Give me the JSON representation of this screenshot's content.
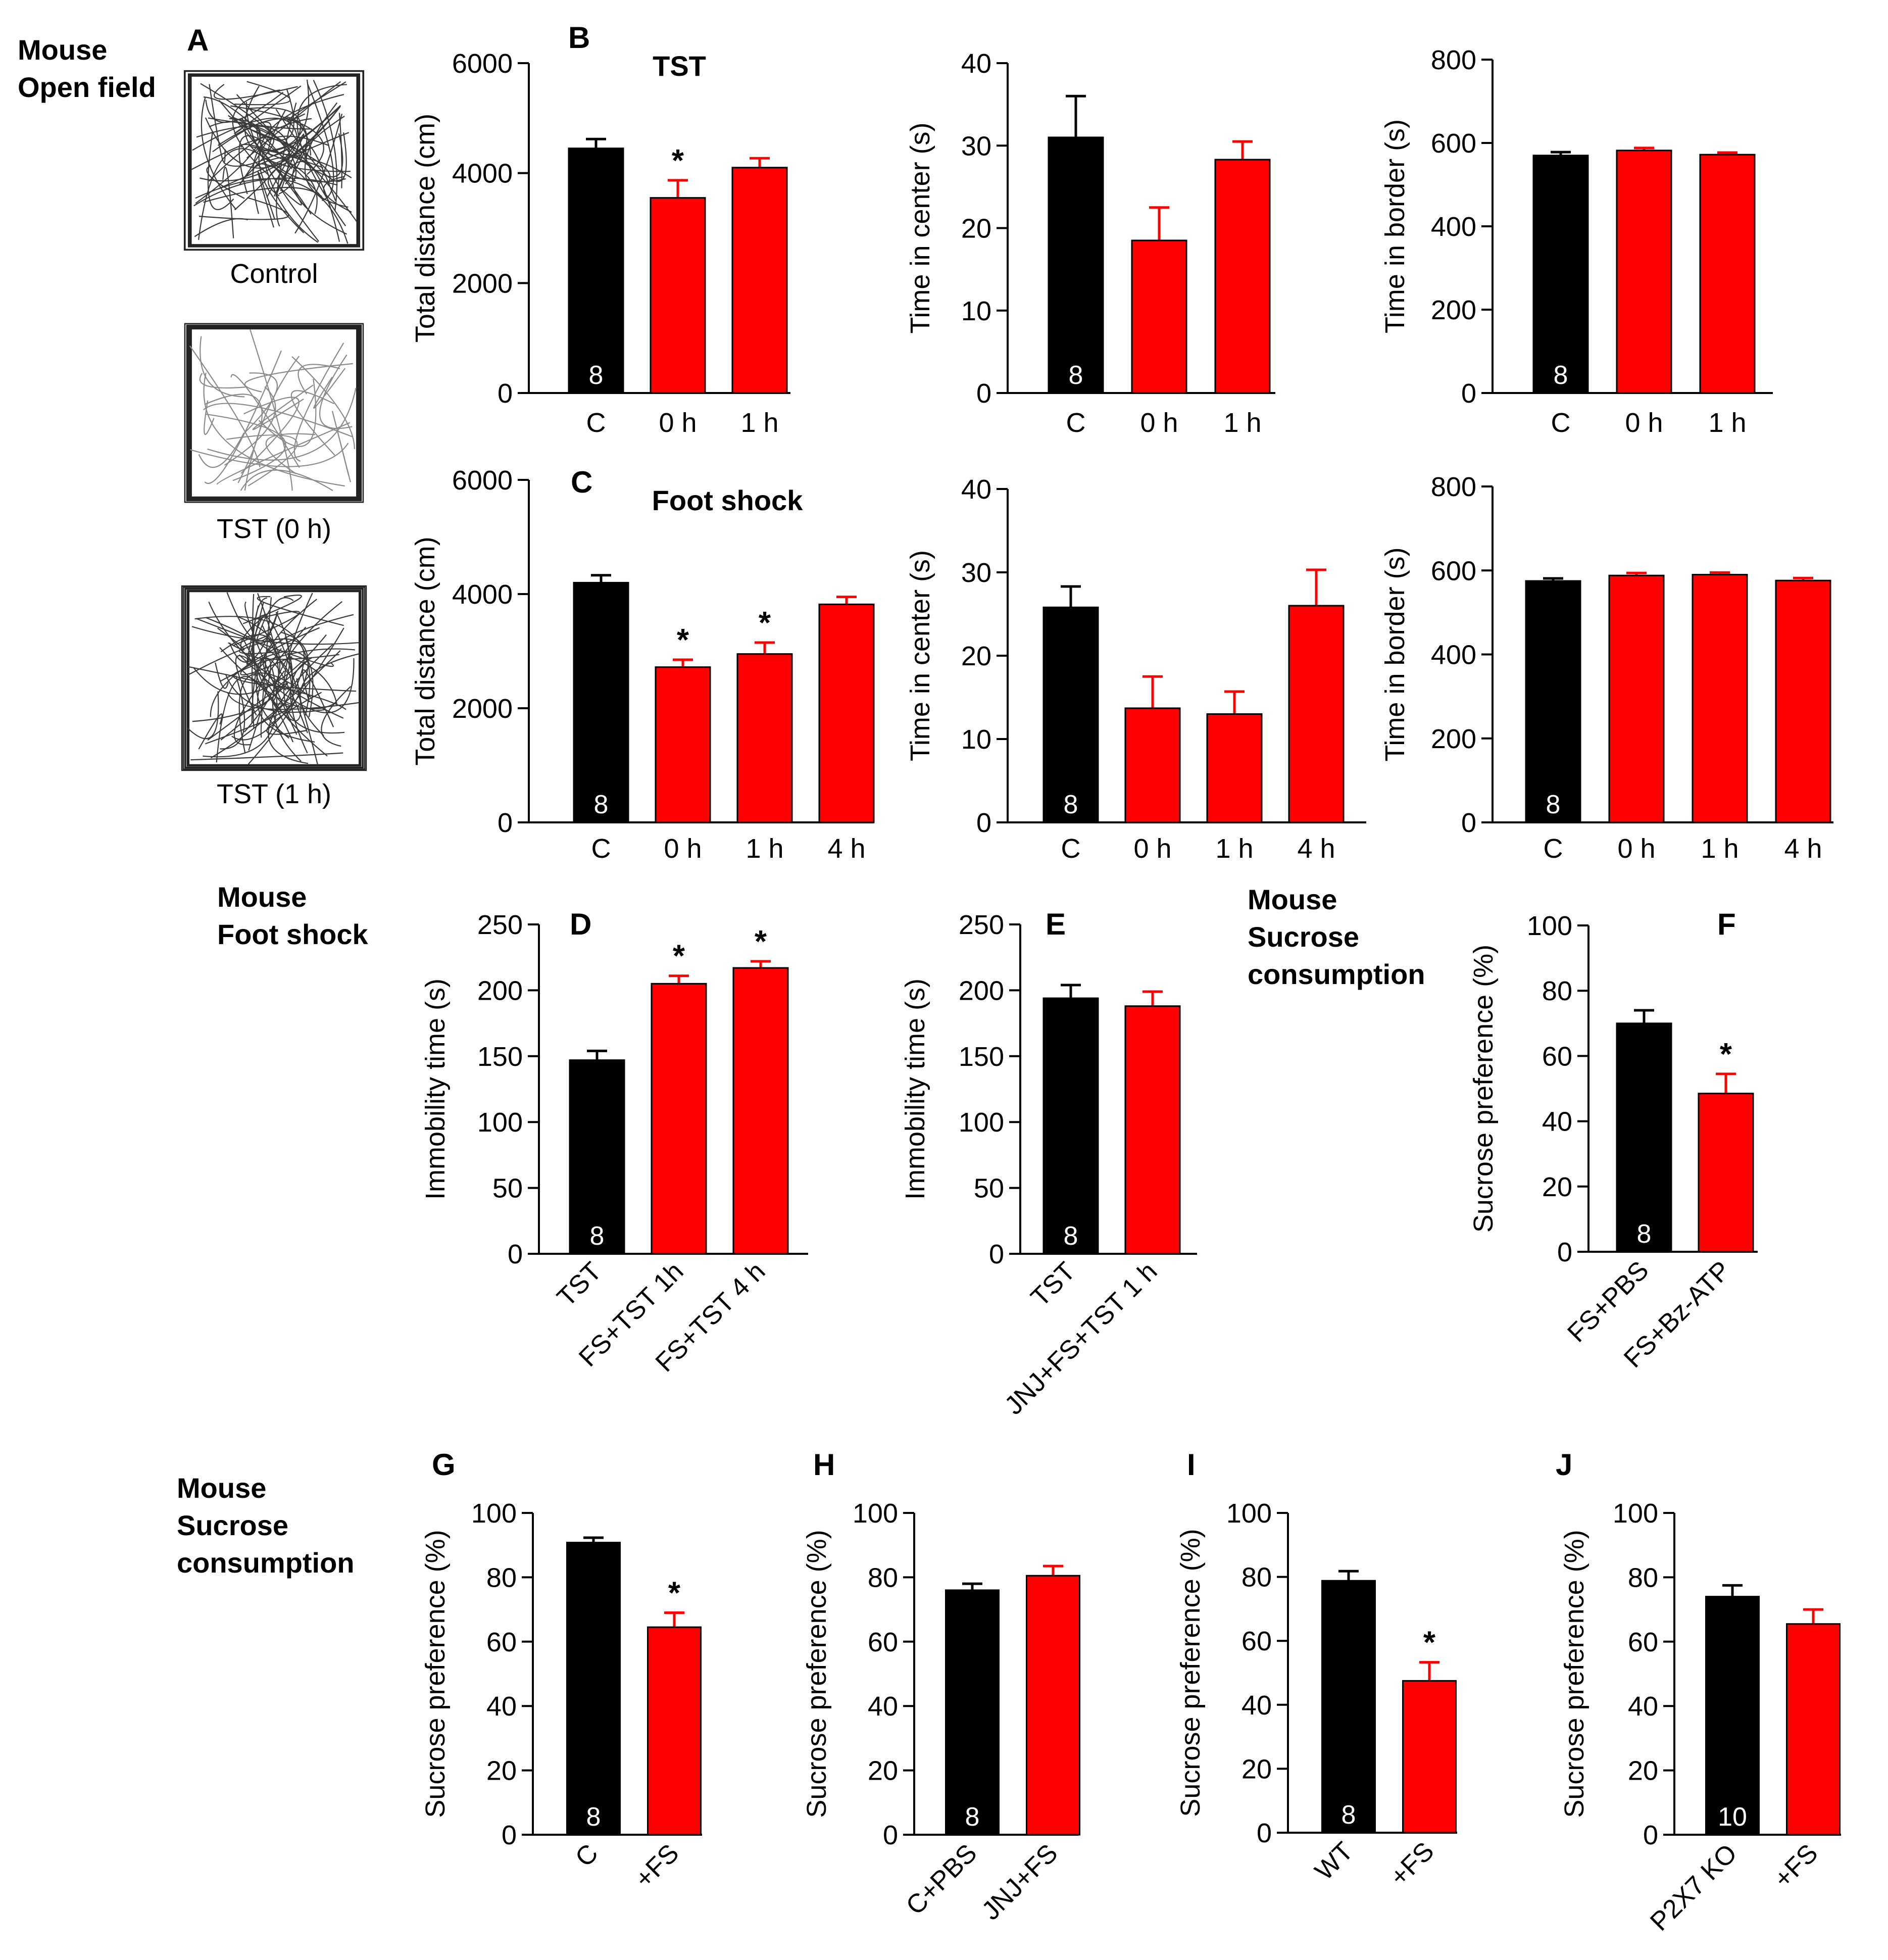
{
  "colors": {
    "control": "#000000",
    "treated": "#ff0000",
    "axis": "#000000",
    "label": "#000000",
    "n_label": "#ffffff"
  },
  "section_labels": [
    {
      "id": "open-field",
      "lines": [
        "Mouse",
        "Open field"
      ]
    },
    {
      "id": "foot-shock",
      "lines": [
        "Mouse",
        "Foot shock"
      ]
    },
    {
      "id": "sucrose-1",
      "lines": [
        "Mouse",
        "Sucrose",
        "consumption"
      ]
    },
    {
      "id": "sucrose-2",
      "lines": [
        "Mouse",
        "Sucrose",
        "consumption"
      ]
    }
  ],
  "panel_A": {
    "letter": "A",
    "track_plots": [
      {
        "caption": "Control",
        "density": "high"
      },
      {
        "caption": "TST (0 h)",
        "density": "low"
      },
      {
        "caption": "TST (1 h)",
        "density": "high"
      }
    ]
  },
  "chart_data": [
    {
      "id": "B1",
      "letter": "B",
      "title": "TST",
      "type": "bar",
      "ylabel": "Total distance (cm)",
      "ylim": [
        0,
        6000
      ],
      "yticks": [
        0,
        2000,
        4000,
        6000
      ],
      "categories": [
        "C",
        "0 h",
        "1 h"
      ],
      "values": [
        4450,
        3550,
        4100
      ],
      "errors": [
        170,
        320,
        170
      ],
      "colors": [
        "control",
        "treated",
        "treated"
      ],
      "sig": [
        "",
        "*",
        ""
      ],
      "n": "8",
      "rotated": false
    },
    {
      "id": "B2",
      "letter": "",
      "title": "",
      "type": "bar",
      "ylabel": "Time in center (s)",
      "ylim": [
        0,
        40
      ],
      "yticks": [
        0,
        10,
        20,
        30,
        40
      ],
      "categories": [
        "C",
        "0 h",
        "1 h"
      ],
      "values": [
        31,
        18.5,
        28.3
      ],
      "errors": [
        5,
        4,
        2.2
      ],
      "colors": [
        "control",
        "treated",
        "treated"
      ],
      "sig": [
        "",
        "",
        ""
      ],
      "n": "8",
      "rotated": false
    },
    {
      "id": "B3",
      "letter": "",
      "title": "",
      "type": "bar",
      "ylabel": "Time in border (s)",
      "ylim": [
        0,
        800
      ],
      "yticks": [
        0,
        200,
        400,
        600,
        800
      ],
      "categories": [
        "C",
        "0 h",
        "1 h"
      ],
      "values": [
        570,
        582,
        572
      ],
      "errors": [
        8,
        6,
        5
      ],
      "colors": [
        "control",
        "treated",
        "treated"
      ],
      "sig": [
        "",
        "",
        ""
      ],
      "n": "8",
      "rotated": false
    },
    {
      "id": "C1",
      "letter": "C",
      "title": "Foot shock",
      "type": "bar",
      "ylabel": "Total distance (cm)",
      "ylim": [
        0,
        6000
      ],
      "yticks": [
        0,
        2000,
        4000,
        6000
      ],
      "categories": [
        "C",
        "0 h",
        "1 h",
        "4 h"
      ],
      "values": [
        4200,
        2720,
        2950,
        3820
      ],
      "errors": [
        130,
        130,
        200,
        130
      ],
      "colors": [
        "control",
        "treated",
        "treated",
        "treated"
      ],
      "sig": [
        "",
        "*",
        "*",
        ""
      ],
      "n": "8",
      "rotated": false
    },
    {
      "id": "C2",
      "letter": "",
      "title": "",
      "type": "bar",
      "ylabel": "Time in center (s)",
      "ylim": [
        0,
        40
      ],
      "yticks": [
        0,
        10,
        20,
        30,
        40
      ],
      "categories": [
        "C",
        "0 h",
        "1 h",
        "4 h"
      ],
      "values": [
        25.8,
        13.7,
        13,
        26
      ],
      "errors": [
        2.5,
        3.8,
        2.7,
        4.3
      ],
      "colors": [
        "control",
        "treated",
        "treated",
        "treated"
      ],
      "sig": [
        "",
        "",
        "",
        ""
      ],
      "n": "8",
      "rotated": false
    },
    {
      "id": "C3",
      "letter": "",
      "title": "",
      "type": "bar",
      "ylabel": "Time in border (s)",
      "ylim": [
        0,
        800
      ],
      "yticks": [
        0,
        200,
        400,
        600,
        800
      ],
      "categories": [
        "C",
        "0 h",
        "1 h",
        "4 h"
      ],
      "values": [
        575,
        588,
        590,
        576
      ],
      "errors": [
        6,
        6,
        5,
        6
      ],
      "colors": [
        "control",
        "treated",
        "treated",
        "treated"
      ],
      "sig": [
        "",
        "",
        "",
        ""
      ],
      "n": "8",
      "rotated": false
    },
    {
      "id": "D",
      "letter": "D",
      "title": "",
      "type": "bar",
      "ylabel": "Immobility time (s)",
      "ylim": [
        0,
        250
      ],
      "yticks": [
        0,
        50,
        100,
        150,
        200,
        250
      ],
      "categories": [
        "TST",
        "FS+TST 1h",
        "FS+TST 4 h"
      ],
      "values": [
        147,
        205,
        217
      ],
      "errors": [
        7,
        6,
        5
      ],
      "colors": [
        "control",
        "treated",
        "treated"
      ],
      "sig": [
        "",
        "*",
        "*"
      ],
      "n": "8",
      "rotated": true
    },
    {
      "id": "E",
      "letter": "E",
      "title": "",
      "type": "bar",
      "ylabel": "Immobility time (s)",
      "ylim": [
        0,
        250
      ],
      "yticks": [
        0,
        50,
        100,
        150,
        200,
        250
      ],
      "categories": [
        "TST",
        "JNJ+FS+TST 1 h"
      ],
      "values": [
        194,
        188
      ],
      "errors": [
        10,
        11
      ],
      "colors": [
        "control",
        "treated"
      ],
      "sig": [
        "",
        ""
      ],
      "n": "8",
      "rotated": true
    },
    {
      "id": "F",
      "letter": "F",
      "title": "",
      "type": "bar",
      "ylabel": "Sucrose preference (%)",
      "ylim": [
        0,
        100
      ],
      "yticks": [
        0,
        20,
        40,
        60,
        80,
        100
      ],
      "categories": [
        "FS+PBS",
        "FS+Bz-ATP"
      ],
      "values": [
        70,
        48.5
      ],
      "errors": [
        4,
        6
      ],
      "colors": [
        "control",
        "treated"
      ],
      "sig": [
        "",
        "*"
      ],
      "n": "8",
      "rotated": true
    },
    {
      "id": "G",
      "letter": "G",
      "title": "",
      "type": "bar",
      "ylabel": "Sucrose preference (%)",
      "ylim": [
        0,
        100
      ],
      "yticks": [
        0,
        20,
        40,
        60,
        80,
        100
      ],
      "categories": [
        "C",
        "+FS"
      ],
      "values": [
        90.8,
        64.5
      ],
      "errors": [
        1.5,
        4.5
      ],
      "colors": [
        "control",
        "treated"
      ],
      "sig": [
        "",
        "*"
      ],
      "n": "8",
      "rotated": true
    },
    {
      "id": "H",
      "letter": "H",
      "title": "",
      "type": "bar",
      "ylabel": "Sucrose preference (%)",
      "ylim": [
        0,
        100
      ],
      "yticks": [
        0,
        20,
        40,
        60,
        80,
        100
      ],
      "categories": [
        "C+PBS",
        "JNJ+FS"
      ],
      "values": [
        76,
        80.5
      ],
      "errors": [
        2,
        3
      ],
      "colors": [
        "control",
        "treated"
      ],
      "sig": [
        "",
        ""
      ],
      "n": "8",
      "rotated": true
    },
    {
      "id": "I",
      "letter": "I",
      "title": "",
      "type": "bar",
      "ylabel": "Sucrose preference (%)",
      "ylim": [
        0,
        100
      ],
      "yticks": [
        0,
        20,
        40,
        60,
        80,
        100
      ],
      "categories": [
        "WT",
        "+FS"
      ],
      "values": [
        78.8,
        47.5
      ],
      "errors": [
        3,
        5.8
      ],
      "colors": [
        "control",
        "treated"
      ],
      "sig": [
        "",
        "*"
      ],
      "n": "8",
      "rotated": true
    },
    {
      "id": "J",
      "letter": "J",
      "title": "",
      "type": "bar",
      "ylabel": "Sucrose preference (%)",
      "ylim": [
        0,
        100
      ],
      "yticks": [
        0,
        20,
        40,
        60,
        80,
        100
      ],
      "categories": [
        "P2X7 KO",
        "+FS"
      ],
      "values": [
        74,
        65.5
      ],
      "errors": [
        3.5,
        4.5
      ],
      "colors": [
        "control",
        "treated"
      ],
      "sig": [
        "",
        ""
      ],
      "n": "10",
      "rotated": true
    }
  ]
}
